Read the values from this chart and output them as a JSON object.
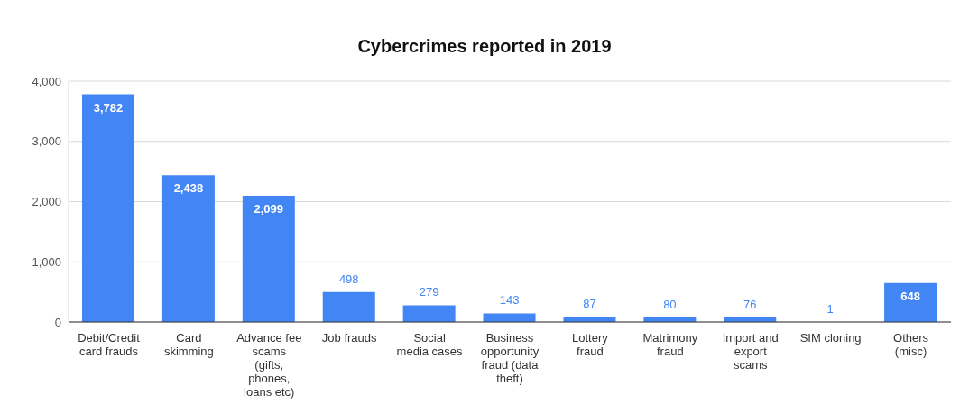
{
  "chart_data": {
    "type": "bar",
    "title": "Cybercrimes reported in 2019",
    "categories": [
      "Debit/Credit card frauds",
      "Card skimming",
      "Advance fee scams (gifts, phones, loans etc)",
      "Job frauds",
      "Social media cases",
      "Business opportunity fraud (data theft)",
      "Lottery fraud",
      "Matrimony fraud",
      "Import and export scams",
      "SIM cloning",
      "Others (misc)"
    ],
    "values": [
      3782,
      2438,
      2099,
      498,
      279,
      143,
      87,
      80,
      76,
      1,
      648
    ],
    "color": "#4285f4",
    "ylim": [
      0,
      4000
    ],
    "yticks": [
      {
        "value": 0,
        "label": "0"
      },
      {
        "value": 1000,
        "label": "1,000"
      },
      {
        "value": 2000,
        "label": "2,000"
      },
      {
        "value": 3000,
        "label": "3,000"
      },
      {
        "value": 4000,
        "label": "4,000"
      }
    ],
    "grid": "y",
    "value_labels": [
      "3,782",
      "2,438",
      "2,099",
      "498",
      "279",
      "143",
      "87",
      "80",
      "76",
      "1",
      "648"
    ]
  }
}
